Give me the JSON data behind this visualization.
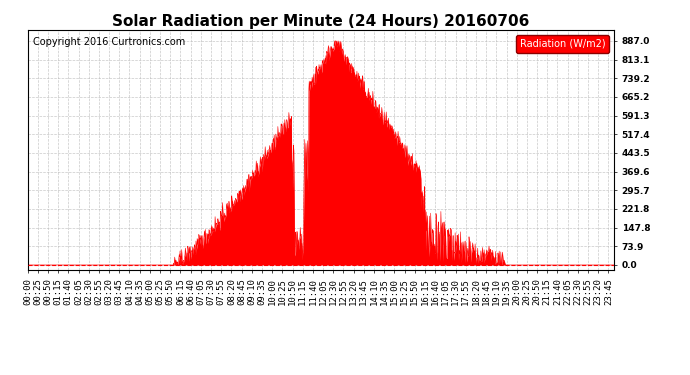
{
  "title": "Solar Radiation per Minute (24 Hours) 20160706",
  "copyright": "Copyright 2016 Curtronics.com",
  "legend_label": "Radiation (W/m2)",
  "yticks": [
    0.0,
    73.9,
    147.8,
    221.8,
    295.7,
    369.6,
    443.5,
    517.4,
    591.3,
    665.2,
    739.2,
    813.1,
    887.0
  ],
  "ymax": 930,
  "ymin": -20,
  "fill_color": "#FF0000",
  "line_color": "#FF0000",
  "background_color": "#FFFFFF",
  "grid_color": "#BBBBBB",
  "dashed_zero_color": "#FF0000",
  "title_fontsize": 11,
  "copyright_fontsize": 7,
  "tick_fontsize": 6.5,
  "legend_fontsize": 7,
  "xtick_interval": 25,
  "total_minutes": 1440,
  "sunrise_minute": 355,
  "sunset_minute": 1175
}
